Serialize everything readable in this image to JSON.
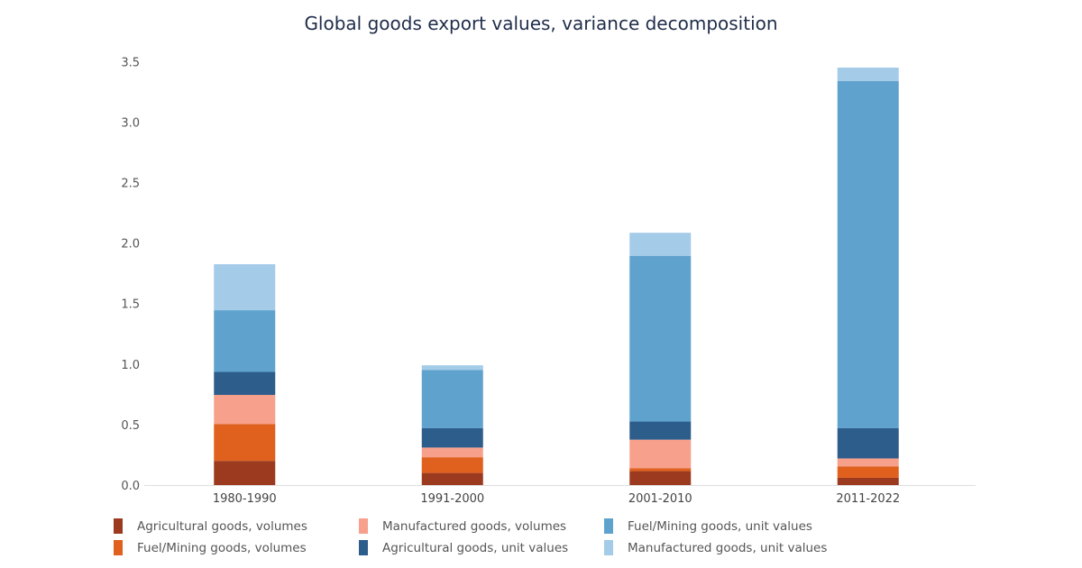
{
  "chart_data": {
    "type": "bar",
    "stacked": true,
    "title": "Global goods export values, variance decomposition",
    "xlabel": "",
    "ylabel": "",
    "ylim": [
      0,
      3.5
    ],
    "yticks": [
      "0.0",
      "0.5",
      "1.0",
      "1.5",
      "2.0",
      "2.5",
      "3.0",
      "3.5"
    ],
    "grid": false,
    "legend_position": "bottom",
    "categories": [
      "1980-1990",
      "1991-2000",
      "2001-2010",
      "2011-2022"
    ],
    "series": [
      {
        "name": "Agricultural goods, volumes",
        "color": "#9c3a1f",
        "values": [
          0.2,
          0.1,
          0.115,
          0.06
        ]
      },
      {
        "name": "Fuel/Mining goods, volumes",
        "color": "#e0601e",
        "values": [
          0.305,
          0.13,
          0.025,
          0.095
        ]
      },
      {
        "name": "Manufactured goods, volumes",
        "color": "#f7a08c",
        "values": [
          0.24,
          0.08,
          0.235,
          0.065
        ]
      },
      {
        "name": "Agricultural goods, unit values",
        "color": "#2d5d8a",
        "values": [
          0.19,
          0.16,
          0.15,
          0.25
        ]
      },
      {
        "name": "Fuel/Mining goods, unit values",
        "color": "#5fa2cd",
        "values": [
          0.51,
          0.48,
          1.37,
          2.87
        ]
      },
      {
        "name": "Manufactured goods, unit values",
        "color": "#a4cbe8",
        "values": [
          0.38,
          0.04,
          0.19,
          0.11
        ]
      }
    ],
    "legend_order": [
      0,
      2,
      4,
      1,
      3,
      5
    ]
  }
}
